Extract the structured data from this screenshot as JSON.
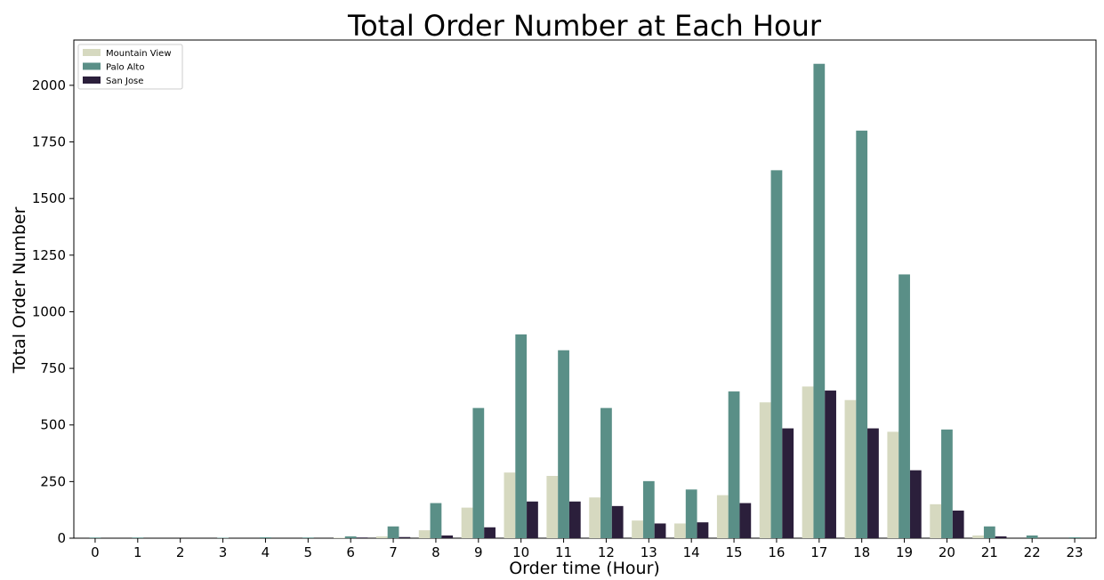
{
  "chart_data": {
    "type": "bar",
    "title": "Total Order Number at Each Hour",
    "xlabel": "Order time (Hour)",
    "ylabel": "Total Order Number",
    "categories": [
      "0",
      "1",
      "2",
      "3",
      "4",
      "5",
      "6",
      "7",
      "8",
      "9",
      "10",
      "11",
      "12",
      "13",
      "14",
      "15",
      "16",
      "17",
      "18",
      "19",
      "20",
      "21",
      "22",
      "23"
    ],
    "series": [
      {
        "name": "Mountain View",
        "color": "#d6d9c0",
        "values": [
          0,
          0,
          0,
          0,
          0,
          0,
          2,
          8,
          35,
          135,
          290,
          275,
          180,
          78,
          65,
          190,
          600,
          670,
          610,
          470,
          150,
          12,
          0,
          0
        ]
      },
      {
        "name": "Palo Alto",
        "color": "#5a8f87",
        "values": [
          3,
          3,
          0,
          2,
          4,
          3,
          8,
          52,
          155,
          575,
          900,
          830,
          575,
          252,
          215,
          648,
          1625,
          2095,
          1800,
          1165,
          480,
          52,
          12,
          4
        ]
      },
      {
        "name": "San Jose",
        "color": "#2b1f3b",
        "values": [
          0,
          0,
          0,
          0,
          0,
          0,
          3,
          5,
          12,
          48,
          162,
          162,
          142,
          65,
          70,
          155,
          485,
          652,
          485,
          300,
          122,
          8,
          0,
          0
        ]
      }
    ],
    "ylim": [
      0,
      2200
    ],
    "yticks": [
      0,
      250,
      500,
      750,
      1000,
      1250,
      1500,
      1750,
      2000
    ],
    "grid": false,
    "legend_position": "top-left"
  }
}
